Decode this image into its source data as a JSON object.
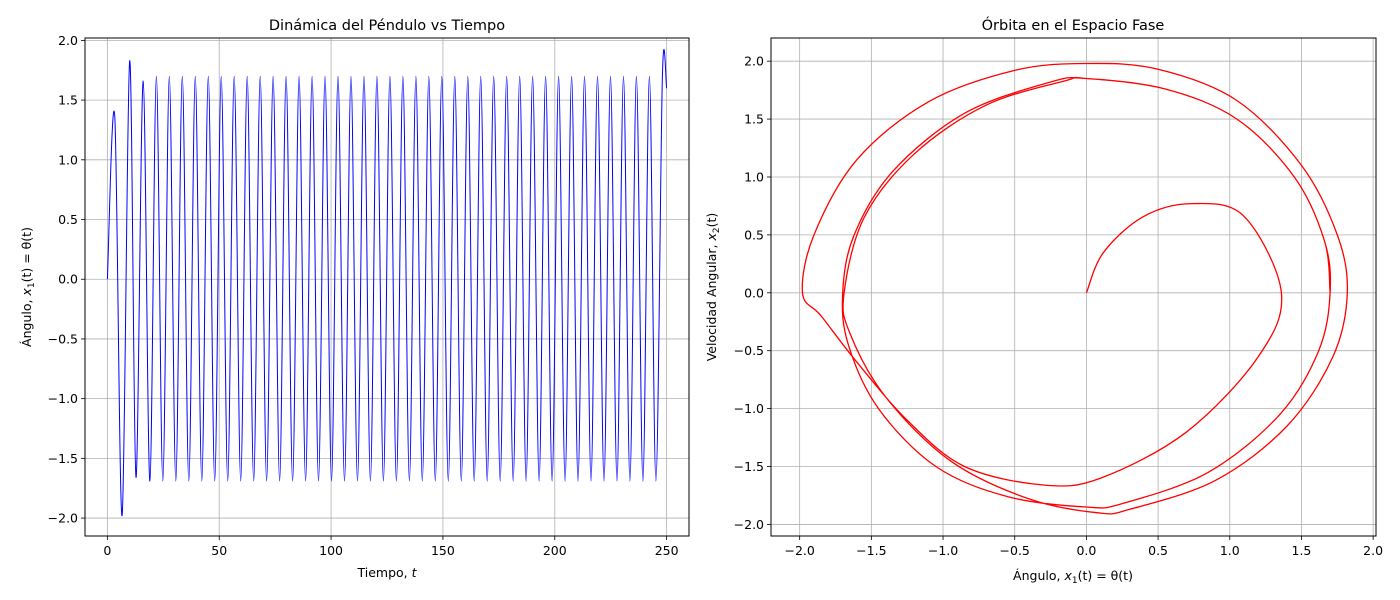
{
  "chart_data": [
    {
      "type": "line",
      "title": "Dinámica del Péndulo vs Tiempo",
      "xlabel_text": "Tiempo, ",
      "xlabel_var": "t",
      "ylabel": {
        "pre": "Ángulo, ",
        "var": "x",
        "sub": "1",
        "post": "(t) = θ(t)"
      },
      "xlim": [
        -10,
        260
      ],
      "ylim": [
        -2.15,
        2.02
      ],
      "xticks": [
        0,
        50,
        100,
        150,
        200,
        250
      ],
      "xtick_labels": [
        "0",
        "50",
        "100",
        "150",
        "200",
        "250"
      ],
      "yticks": [
        -2.0,
        -1.5,
        -1.0,
        -0.5,
        0.0,
        0.5,
        1.0,
        1.5,
        2.0
      ],
      "ytick_labels": [
        "−2.0",
        "−1.5",
        "−1.0",
        "−0.5",
        "0.0",
        "0.5",
        "1.0",
        "1.5",
        "2.0"
      ],
      "grid": true,
      "series": [
        {
          "color": "#0000ff",
          "x": [
            0,
            3.3,
            6.6,
            10.0,
            12.8,
            16.0,
            19.0,
            21.9,
            24.8,
            27.7,
            30.6,
            33.5,
            36.4,
            39.3,
            42.2,
            45.1,
            48.0,
            50.9,
            53.8,
            56.7,
            59.6,
            62.5,
            65.4,
            68.3,
            71.2,
            74.1,
            77.0,
            79.9,
            82.8,
            85.7,
            88.6,
            91.5,
            94.4,
            97.3,
            100.2,
            103.1,
            106.0,
            108.9,
            111.8,
            114.7,
            117.6,
            120.5,
            123.4,
            126.3,
            129.2,
            132.1,
            135.0,
            137.9,
            140.8,
            143.7,
            146.6,
            149.5,
            152.4,
            155.3,
            158.2,
            161.1,
            164.0,
            166.9,
            169.8,
            172.7,
            175.6,
            178.5,
            181.4,
            184.3,
            187.2,
            190.1,
            193.0,
            195.9,
            198.8,
            201.7,
            204.6,
            207.5,
            210.4,
            213.3,
            216.2,
            219.1,
            222.0,
            224.9,
            227.8,
            230.7,
            233.6,
            236.5,
            239.4,
            242.3,
            245.2,
            248.1,
            250.0
          ],
          "y": [
            0,
            1.36,
            -1.98,
            1.83,
            -1.66,
            1.66,
            -1.69,
            1.7,
            -1.69,
            1.7,
            -1.69,
            1.7,
            -1.69,
            1.7,
            -1.69,
            1.7,
            -1.69,
            1.7,
            -1.69,
            1.7,
            -1.69,
            1.7,
            -1.69,
            1.7,
            -1.69,
            1.7,
            -1.69,
            1.7,
            -1.69,
            1.7,
            -1.69,
            1.7,
            -1.69,
            1.7,
            -1.69,
            1.7,
            -1.69,
            1.7,
            -1.69,
            1.7,
            -1.69,
            1.7,
            -1.69,
            1.7,
            -1.69,
            1.7,
            -1.69,
            1.7,
            -1.69,
            1.7,
            -1.69,
            1.7,
            -1.69,
            1.7,
            -1.69,
            1.7,
            -1.69,
            1.7,
            -1.69,
            1.7,
            -1.69,
            1.7,
            -1.69,
            1.7,
            -1.69,
            1.7,
            -1.69,
            1.7,
            -1.69,
            1.7,
            -1.69,
            1.7,
            -1.69,
            1.7,
            -1.69,
            1.7,
            -1.69,
            1.7,
            -1.69,
            1.7,
            -1.69,
            1.7,
            -1.69,
            1.7,
            -1.69,
            1.7,
            1.6
          ]
        }
      ]
    },
    {
      "type": "line",
      "title": "Órbita en el Espacio Fase",
      "xlabel": {
        "pre": "Ángulo, ",
        "var": "x",
        "sub": "1",
        "post": "(t) = θ(t)"
      },
      "ylabel": {
        "pre": "Velocidad Angular, ",
        "var": "x",
        "sub": "2",
        "post": "(t)"
      },
      "xlim": [
        -2.2,
        2.02
      ],
      "ylim": [
        -2.1,
        2.2
      ],
      "xticks": [
        -2.0,
        -1.5,
        -1.0,
        -0.5,
        0.0,
        0.5,
        1.0,
        1.5,
        2.0
      ],
      "xtick_labels": [
        "−2.0",
        "−1.5",
        "−1.0",
        "−0.5",
        "0.0",
        "0.5",
        "1.0",
        "1.5",
        "2.0"
      ],
      "yticks": [
        -2.0,
        -1.5,
        -1.0,
        -0.5,
        0.0,
        0.5,
        1.0,
        1.5,
        2.0
      ],
      "ytick_labels": [
        "−2.0",
        "−1.5",
        "−1.0",
        "−0.5",
        "0.0",
        "0.5",
        "1.0",
        "1.5",
        "2.0"
      ],
      "grid": true,
      "series": [
        {
          "color": "#ff0000",
          "x": [
            0,
            0.12,
            0.4,
            0.74,
            1.1,
            1.36,
            1.2,
            0.7,
            0.1,
            -0.3,
            -0.85,
            -1.25,
            -1.6,
            -1.85,
            -1.98,
            -1.9,
            -1.6,
            -1.1,
            -0.5,
            0.0,
            0.5,
            1.05,
            1.5,
            1.75,
            1.82,
            1.72,
            1.4,
            0.9,
            0.3,
            0.08,
            -0.4,
            -0.95,
            -1.4,
            -1.65,
            -1.69,
            -1.55,
            -1.2,
            -0.7,
            -0.15,
            0.0,
            0.55,
            1.05,
            1.45,
            1.66,
            1.7,
            1.62,
            1.35,
            0.85,
            0.25,
            0.0,
            -0.55,
            -1.05,
            -1.45,
            -1.66,
            -1.7,
            -1.62,
            -1.35,
            -0.85,
            -0.25,
            0.0,
            0.55,
            1.05,
            1.45,
            1.66,
            1.7
          ],
          "y": [
            0,
            0.35,
            0.66,
            0.77,
            0.66,
            0.0,
            -0.55,
            -1.2,
            -1.6,
            -1.66,
            -1.5,
            -1.1,
            -0.6,
            -0.2,
            0.0,
            0.5,
            1.15,
            1.65,
            1.92,
            1.98,
            1.93,
            1.66,
            1.1,
            0.5,
            0.0,
            -0.55,
            -1.15,
            -1.62,
            -1.87,
            -1.9,
            -1.78,
            -1.45,
            -0.9,
            -0.35,
            0.0,
            0.65,
            1.2,
            1.62,
            1.83,
            1.85,
            1.76,
            1.5,
            1.0,
            0.45,
            0.0,
            -0.5,
            -1.05,
            -1.55,
            -1.82,
            -1.85,
            -1.76,
            -1.5,
            -1.0,
            -0.45,
            0.0,
            0.5,
            1.05,
            1.55,
            1.82,
            1.85,
            1.76,
            1.5,
            1.0,
            0.45,
            0.0
          ]
        }
      ]
    }
  ]
}
